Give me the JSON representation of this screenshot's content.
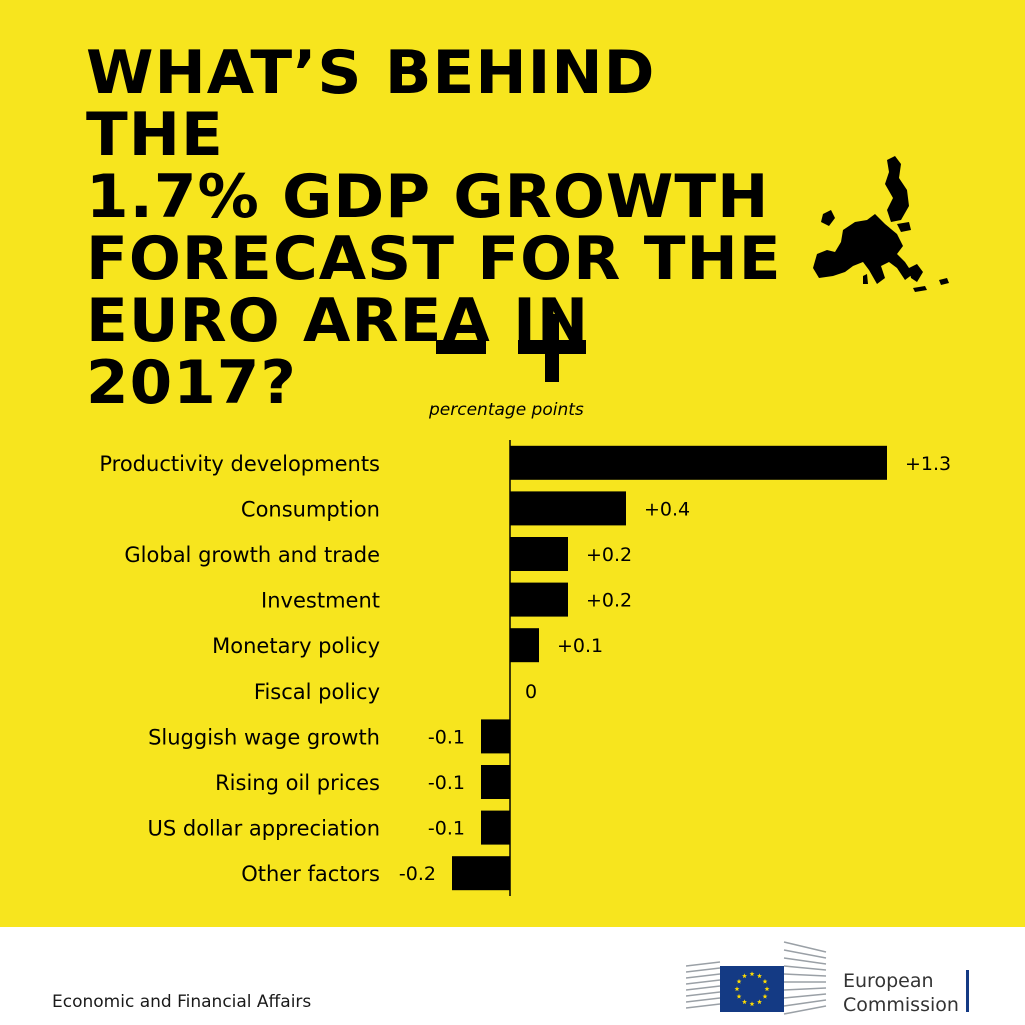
{
  "title_lines": [
    "WHAT’S BEHIND THE",
    "1.7% GDP GROWTH",
    "FORECAST FOR THE",
    "EURO AREA IN 2017?"
  ],
  "minus_sign": "−",
  "plus_sign": "+",
  "unit_label": "percentage points",
  "chart_data": {
    "type": "bar",
    "orientation": "horizontal",
    "title": "WHAT’S BEHIND THE 1.7% GDP GROWTH FORECAST FOR THE EURO AREA IN 2017?",
    "xlabel": "percentage points",
    "ylabel": "",
    "categories": [
      "Productivity developments",
      "Consumption",
      "Global growth and trade",
      "Investment",
      "Monetary policy",
      "Fiscal policy",
      "Sluggish wage growth",
      "Rising oil prices",
      "US dollar appreciation",
      "Other factors"
    ],
    "values": [
      1.3,
      0.4,
      0.2,
      0.2,
      0.1,
      0,
      -0.1,
      -0.1,
      -0.1,
      -0.2
    ],
    "value_labels": [
      "+1.3",
      "+0.4",
      "+0.2",
      "+0.2",
      "+0.1",
      "0",
      "-0.1",
      "-0.1",
      "-0.1",
      "-0.2"
    ],
    "xlim": [
      -0.2,
      1.3
    ],
    "grid": false,
    "legend": "none",
    "bar_color": "#000000"
  },
  "colors": {
    "background": "#f7e51e",
    "bars": "#000000",
    "footer_bg": "#ffffff",
    "eu_blue": "#143a84",
    "eu_stars": "#ffdd00"
  },
  "footer": {
    "department": "Economic and Financial Affairs",
    "org_line1": "European",
    "org_line2": "Commission"
  },
  "icons": {
    "map": "europe-map-icon",
    "logo": "european-commission-logo"
  }
}
